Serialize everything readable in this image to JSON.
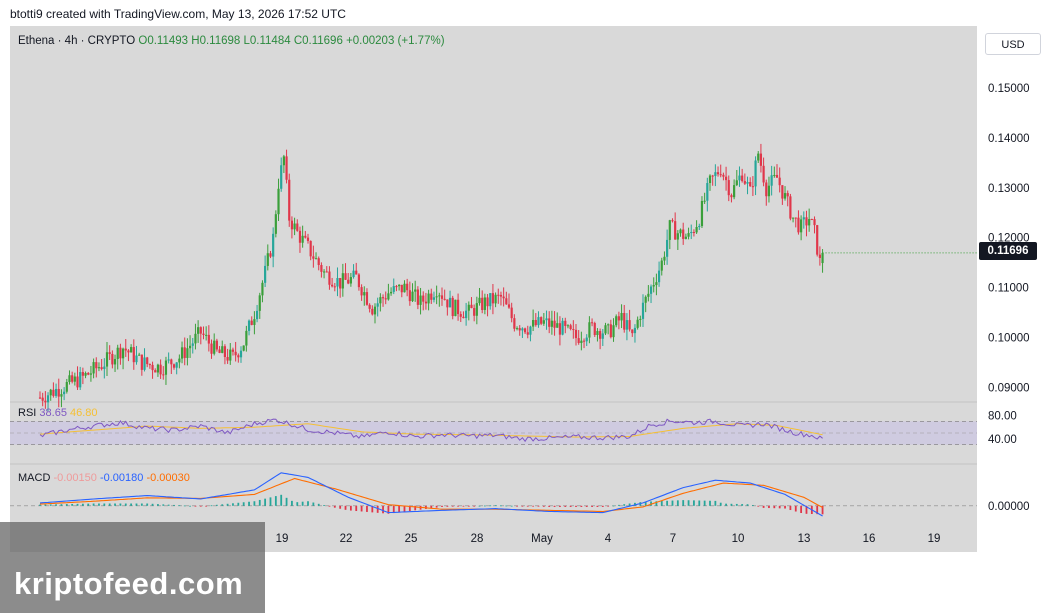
{
  "header": {
    "attribution": "btotti9 created with TradingView.com, May 13, 2026 17:52 UTC"
  },
  "legend": {
    "symbol": "Ethena · 4h · CRYPTO",
    "open": "O0.11493",
    "high": "H0.11698",
    "low": "L0.11484",
    "close": "C0.11696",
    "change": "+0.00203 (+1.77%)"
  },
  "currency_button": "USD",
  "last_price_label": "0.11696",
  "rsi_legend": {
    "name": "RSI",
    "value": "38.65",
    "ma": "46.80"
  },
  "macd_legend": {
    "name": "MACD",
    "hist": "-0.00150",
    "macd": "-0.00180",
    "signal": "-0.00030"
  },
  "watermark": {
    "text": "kriptofeed.com"
  },
  "colors": {
    "up": "#26a69a",
    "up_alt": "#3a9f3a",
    "down": "#e0364a",
    "rsi": "#7e57c2",
    "rsi_ma": "#f5c034",
    "macd": "#2962ff",
    "signal": "#ff6d00"
  },
  "chart_data": {
    "type": "candlestick",
    "title": "Ethena · 4h · CRYPTO",
    "x_ticks": [
      "19",
      "22",
      "25",
      "28",
      "May",
      "4",
      "7",
      "10",
      "13",
      "16",
      "19"
    ],
    "price_ticks": [
      "0.15000",
      "0.14000",
      "0.13000",
      "0.12000",
      "0.11000",
      "0.10000",
      "0.09000"
    ],
    "ylim": [
      0.0875,
      0.156
    ],
    "rsi_ticks": [
      "80.00",
      "40.00"
    ],
    "rsi_bands": [
      70,
      30
    ],
    "macd_ticks": [
      "0.00000"
    ],
    "last_price": 0.11696,
    "close_path": [
      [
        0,
        0.088
      ],
      [
        8,
        0.09
      ],
      [
        16,
        0.092
      ],
      [
        24,
        0.095
      ],
      [
        31,
        0.098
      ],
      [
        38,
        0.095
      ],
      [
        45,
        0.094
      ],
      [
        52,
        0.096
      ],
      [
        60,
        0.101
      ],
      [
        66,
        0.097
      ],
      [
        72,
        0.096
      ],
      [
        76,
        0.099
      ],
      [
        80,
        0.105
      ],
      [
        84,
        0.113
      ],
      [
        87,
        0.12
      ],
      [
        89,
        0.131
      ],
      [
        91,
        0.136
      ],
      [
        93,
        0.124
      ],
      [
        96,
        0.121
      ],
      [
        100,
        0.118
      ],
      [
        106,
        0.113
      ],
      [
        112,
        0.111
      ],
      [
        118,
        0.112
      ],
      [
        124,
        0.106
      ],
      [
        130,
        0.109
      ],
      [
        136,
        0.11
      ],
      [
        142,
        0.107
      ],
      [
        148,
        0.11
      ],
      [
        154,
        0.106
      ],
      [
        160,
        0.105
      ],
      [
        166,
        0.107
      ],
      [
        172,
        0.108
      ],
      [
        177,
        0.103
      ],
      [
        182,
        0.102
      ],
      [
        188,
        0.103
      ],
      [
        194,
        0.102
      ],
      [
        200,
        0.1
      ],
      [
        206,
        0.102
      ],
      [
        212,
        0.101
      ],
      [
        217,
        0.104
      ],
      [
        221,
        0.1
      ],
      [
        224,
        0.105
      ],
      [
        228,
        0.11
      ],
      [
        232,
        0.115
      ],
      [
        235,
        0.122
      ],
      [
        238,
        0.121
      ],
      [
        242,
        0.12
      ],
      [
        246,
        0.124
      ],
      [
        250,
        0.131
      ],
      [
        254,
        0.134
      ],
      [
        258,
        0.129
      ],
      [
        262,
        0.133
      ],
      [
        265,
        0.129
      ],
      [
        268,
        0.137
      ],
      [
        271,
        0.13
      ],
      [
        275,
        0.132
      ],
      [
        278,
        0.128
      ],
      [
        281,
        0.124
      ],
      [
        284,
        0.122
      ],
      [
        287,
        0.124
      ],
      [
        289,
        0.121
      ],
      [
        291,
        0.115
      ],
      [
        292,
        0.117
      ]
    ],
    "rsi_path": [
      [
        0,
        45
      ],
      [
        10,
        55
      ],
      [
        20,
        62
      ],
      [
        30,
        68
      ],
      [
        40,
        58
      ],
      [
        50,
        55
      ],
      [
        60,
        62
      ],
      [
        70,
        50
      ],
      [
        80,
        66
      ],
      [
        88,
        73
      ],
      [
        94,
        65
      ],
      [
        100,
        56
      ],
      [
        110,
        50
      ],
      [
        120,
        43
      ],
      [
        130,
        52
      ],
      [
        140,
        44
      ],
      [
        150,
        47
      ],
      [
        160,
        45
      ],
      [
        170,
        46
      ],
      [
        180,
        40
      ],
      [
        190,
        41
      ],
      [
        200,
        43
      ],
      [
        210,
        42
      ],
      [
        220,
        44
      ],
      [
        228,
        64
      ],
      [
        236,
        71
      ],
      [
        244,
        68
      ],
      [
        252,
        70
      ],
      [
        262,
        62
      ],
      [
        270,
        66
      ],
      [
        276,
        58
      ],
      [
        282,
        50
      ],
      [
        288,
        46
      ],
      [
        292,
        39
      ]
    ],
    "rsi_ma_path": [
      [
        0,
        48
      ],
      [
        20,
        55
      ],
      [
        40,
        62
      ],
      [
        60,
        58
      ],
      [
        80,
        60
      ],
      [
        100,
        66
      ],
      [
        120,
        52
      ],
      [
        140,
        48
      ],
      [
        160,
        47
      ],
      [
        180,
        45
      ],
      [
        200,
        43
      ],
      [
        220,
        44
      ],
      [
        240,
        58
      ],
      [
        260,
        66
      ],
      [
        275,
        63
      ],
      [
        292,
        47
      ]
    ],
    "macd_path": [
      [
        0,
        0.0005
      ],
      [
        20,
        0.0012
      ],
      [
        40,
        0.0018
      ],
      [
        60,
        0.0012
      ],
      [
        80,
        0.0028
      ],
      [
        90,
        0.0058
      ],
      [
        100,
        0.005
      ],
      [
        115,
        0.0015
      ],
      [
        130,
        -0.0012
      ],
      [
        150,
        -0.0008
      ],
      [
        170,
        -0.0005
      ],
      [
        190,
        -0.001
      ],
      [
        210,
        -0.0012
      ],
      [
        225,
        0.0005
      ],
      [
        240,
        0.0032
      ],
      [
        252,
        0.0045
      ],
      [
        265,
        0.004
      ],
      [
        278,
        0.002
      ],
      [
        292,
        -0.0018
      ]
    ],
    "signal_path": [
      [
        0,
        0.0003
      ],
      [
        20,
        0.0008
      ],
      [
        40,
        0.0014
      ],
      [
        60,
        0.0013
      ],
      [
        80,
        0.002
      ],
      [
        95,
        0.0048
      ],
      [
        110,
        0.003
      ],
      [
        130,
        0.0002
      ],
      [
        150,
        -0.0006
      ],
      [
        170,
        -0.0006
      ],
      [
        190,
        -0.0008
      ],
      [
        210,
        -0.001
      ],
      [
        225,
        -0.0002
      ],
      [
        240,
        0.0022
      ],
      [
        255,
        0.004
      ],
      [
        270,
        0.0036
      ],
      [
        285,
        0.0015
      ],
      [
        292,
        -0.0003
      ]
    ],
    "macd_ylim": [
      -0.0025,
      0.007
    ]
  }
}
